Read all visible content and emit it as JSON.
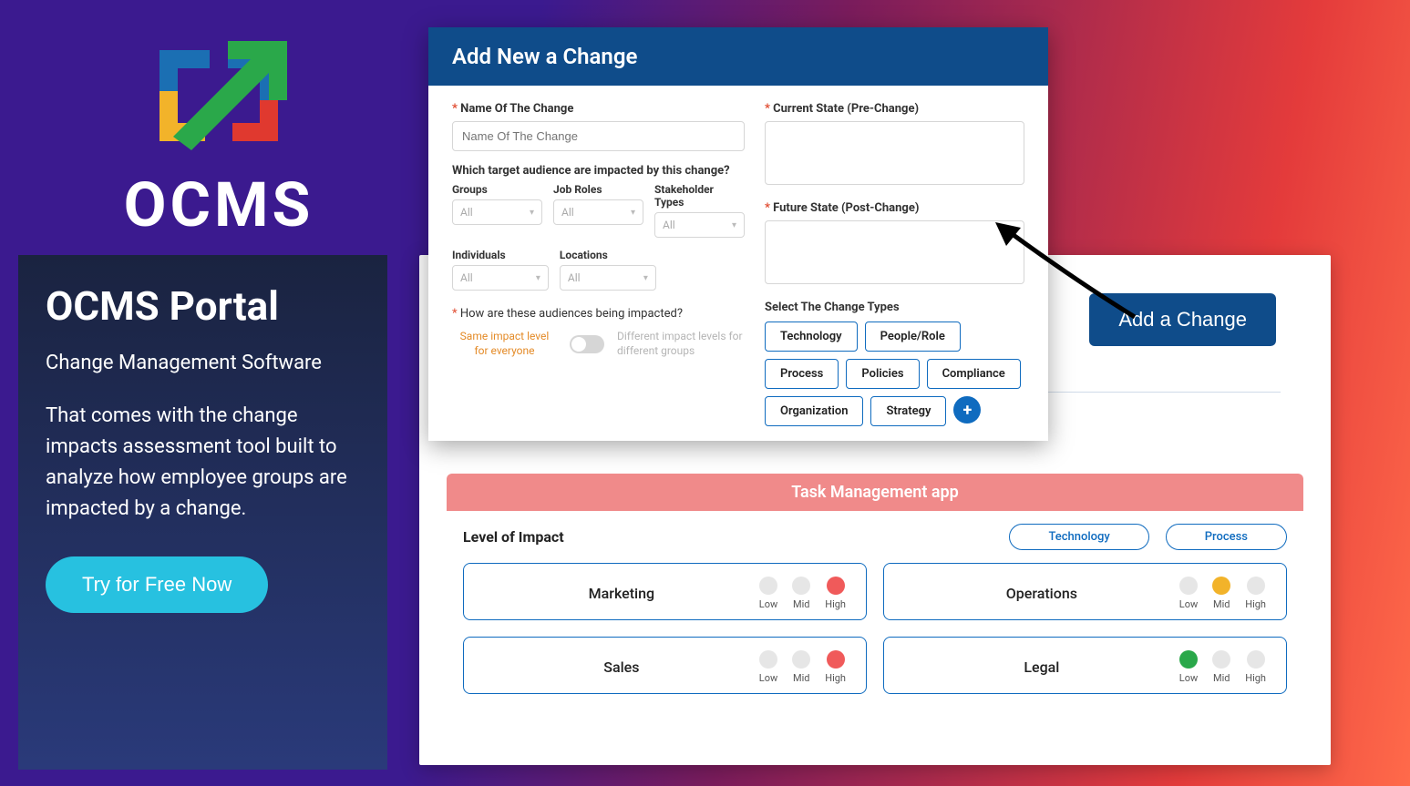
{
  "brand": {
    "name": "OCMS",
    "logo_colors": {
      "arrow": "#2aa84a",
      "tl": "#1b6fb3",
      "tr": "#1b6fb3",
      "bl": "#f2b32a",
      "br": "#e0392f"
    }
  },
  "promo": {
    "heading": "OCMS Portal",
    "subtitle": "Change Management Software",
    "description": "That comes with the change impacts assessment tool built to analyze how employee groups are impacted by a change.",
    "cta": "Try for Free Now"
  },
  "back": {
    "add_button": "Add a Change"
  },
  "modal": {
    "title": "Add New a Change",
    "name_label": "Name Of The Change",
    "name_placeholder": "Name Of The Change",
    "audience_question": "Which target audience are impacted by this change?",
    "groups_label": "Groups",
    "jobroles_label": "Job Roles",
    "stakeholder_label": "Stakeholder Types",
    "individuals_label": "Individuals",
    "locations_label": "Locations",
    "select_all": "All",
    "impact_question": "How are these audiences being impacted?",
    "toggle_left": "Same impact level for everyone",
    "toggle_right": "Different impact levels for different groups",
    "current_state_label": "Current State (Pre-Change)",
    "future_state_label": "Future State (Post-Change)",
    "change_types_label": "Select The Change Types",
    "change_types": [
      "Technology",
      "People/Role",
      "Process",
      "Policies",
      "Compliance",
      "Organization",
      "Strategy"
    ]
  },
  "impact": {
    "header": "Task Management app",
    "title": "Level of Impact",
    "tabs": [
      "Technology",
      "Process"
    ],
    "levels": [
      "Low",
      "Mid",
      "High"
    ],
    "colors": {
      "inactive": "#e6e6e6",
      "high": "#f05a5a",
      "mid": "#f2b32a",
      "low": "#2aa84a"
    },
    "cards": [
      {
        "name": "Marketing",
        "active": "High"
      },
      {
        "name": "Operations",
        "active": "Mid"
      },
      {
        "name": "Sales",
        "active": "High"
      },
      {
        "name": "Legal",
        "active": "Low"
      }
    ]
  }
}
